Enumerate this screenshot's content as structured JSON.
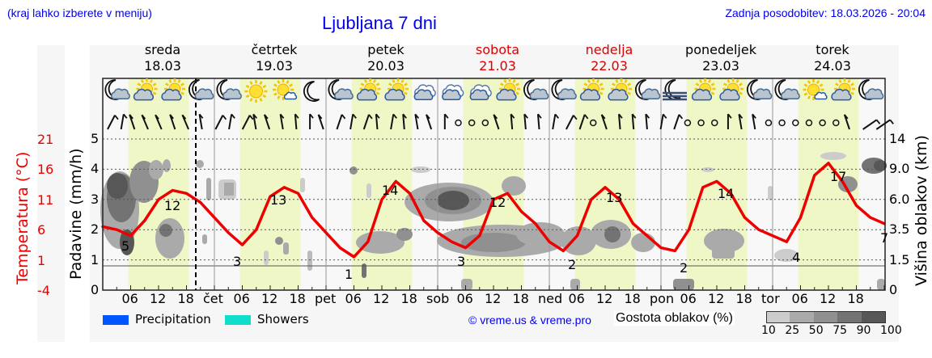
{
  "header": {
    "region_hint": "(kraj lahko izberete v meniju)",
    "title": "Ljubljana 7 dni",
    "last_update": "Zadnja posodobitev: 18.03.2026 - 20:04"
  },
  "days": [
    {
      "name": "sreda",
      "date": "18.03",
      "weekend": false
    },
    {
      "name": "četrtek",
      "date": "19.03",
      "weekend": false
    },
    {
      "name": "petek",
      "date": "20.03",
      "weekend": false
    },
    {
      "name": "sobota",
      "date": "21.03",
      "weekend": true
    },
    {
      "name": "nedelja",
      "date": "22.03",
      "weekend": true
    },
    {
      "name": "ponedeljek",
      "date": "23.03",
      "weekend": false
    },
    {
      "name": "torek",
      "date": "24.03",
      "weekend": false
    }
  ],
  "axes": {
    "temperature_label": "Temperatura (°C)",
    "precip_label": "Padavine (mm/h)",
    "cloud_height_label": "Višina oblakov (km)",
    "temperature_ticks": [
      "21",
      "16",
      "11",
      "6",
      "1",
      "-4"
    ],
    "precip_ticks": [
      "5",
      "4",
      "3",
      "2",
      "1",
      "0"
    ],
    "cloud_height_ticks": [
      "14",
      "9.0",
      "6.0",
      "3.5",
      "1.5",
      "0"
    ],
    "x_ticks": [
      "06",
      "12",
      "18",
      "čet",
      "06",
      "12",
      "18",
      "pet",
      "06",
      "12",
      "18",
      "sob",
      "06",
      "12",
      "18",
      "ned",
      "06",
      "12",
      "18",
      "pon",
      "06",
      "12",
      "18",
      "tor",
      "06",
      "12",
      "18"
    ]
  },
  "weather_icons": [
    "moon-cloud",
    "sun-cloud",
    "sun-cloud",
    "moon-cloud",
    "moon-cloud",
    "sun",
    "sun-small-cloud",
    "moon",
    "moon-cloud",
    "sun-cloud",
    "sun-cloud",
    "cloud-overcast",
    "cloud-overcast",
    "cloud-overcast",
    "sun-cloud",
    "moon-cloud",
    "moon-cloud",
    "sun-cloud",
    "sun-cloud",
    "moon-cloud",
    "moon-fog",
    "sun-cloud",
    "sun-cloud",
    "moon-cloud",
    "moon-cloud",
    "sun-small-cloud",
    "sun-cloud",
    "moon-cloud"
  ],
  "legend": {
    "precipitation": {
      "label": "Precipitation",
      "color": "#0055ff"
    },
    "showers": {
      "label": "Showers",
      "color": "#11ddcc"
    },
    "copyright": "© vreme.us & vreme.pro",
    "cloud_density_label": "Gostota oblakov (%)",
    "cloud_density_scale": [
      {
        "value": "10",
        "color": "#cccccc"
      },
      {
        "value": "25",
        "color": "#aaaaaa"
      },
      {
        "value": "50",
        "color": "#909090"
      },
      {
        "value": "75",
        "color": "#737373"
      },
      {
        "value": "90",
        "color": "#575757"
      },
      {
        "value": "100",
        "color": ""
      }
    ]
  },
  "colors": {
    "temperature_line": "#ee0000",
    "daylight_band": "#eff7c6",
    "plot_bg": "#f8f8f8",
    "weekend_text": "#e00000",
    "link_text": "#0000ee"
  },
  "chart_data": {
    "type": "line",
    "title": "Ljubljana 7 dni",
    "xlabel": "",
    "ylabel": "Temperatura (°C)",
    "ylim": [
      -4,
      21
    ],
    "secondary_axes": {
      "precipitation_mm_h": [
        0,
        5
      ],
      "cloud_height_km": [
        0,
        14
      ]
    },
    "series": [
      {
        "name": "Temperature",
        "x_hours_from_start": [
          0,
          3,
          6,
          9,
          12,
          15,
          18,
          21,
          24,
          27,
          30,
          33,
          36,
          39,
          42,
          45,
          48,
          51,
          54,
          57,
          60,
          63,
          66,
          69,
          72,
          75,
          78,
          81,
          84,
          87,
          90,
          93,
          96,
          99,
          102,
          105,
          108,
          111,
          114,
          117,
          120,
          123,
          126,
          129,
          132,
          135,
          138,
          141,
          144,
          147,
          150,
          153,
          156,
          159,
          162,
          165,
          168
        ],
        "values": [
          6.5,
          6.0,
          5.0,
          7.5,
          11.0,
          12.5,
          12.0,
          10.5,
          8.0,
          5.5,
          3.5,
          6.0,
          11.5,
          13.0,
          12.0,
          8.0,
          5.5,
          3.0,
          1.5,
          4.0,
          11.0,
          14.0,
          12.0,
          7.5,
          5.5,
          4.0,
          3.0,
          5.0,
          11.0,
          12.0,
          9.0,
          7.0,
          4.0,
          2.5,
          5.0,
          11.0,
          13.0,
          11.0,
          7.0,
          5.0,
          3.0,
          2.5,
          6.0,
          13.0,
          14.0,
          12.0,
          8.0,
          6.0,
          5.0,
          4.0,
          8.0,
          15.0,
          17.0,
          14.0,
          10.0,
          8.0,
          7.0
        ]
      }
    ],
    "annotations": [
      {
        "label": "5",
        "type": "min",
        "day": "18.03"
      },
      {
        "label": "12",
        "type": "max",
        "day": "18.03"
      },
      {
        "label": "3",
        "type": "min",
        "day": "19.03"
      },
      {
        "label": "13",
        "type": "max",
        "day": "19.03"
      },
      {
        "label": "1",
        "type": "min",
        "day": "20.03"
      },
      {
        "label": "14",
        "type": "max",
        "day": "20.03"
      },
      {
        "label": "3",
        "type": "min",
        "day": "21.03"
      },
      {
        "label": "12",
        "type": "max",
        "day": "21.03"
      },
      {
        "label": "2",
        "type": "min",
        "day": "22.03"
      },
      {
        "label": "13",
        "type": "max",
        "day": "22.03"
      },
      {
        "label": "2",
        "type": "min",
        "day": "23.03"
      },
      {
        "label": "14",
        "type": "max",
        "day": "23.03"
      },
      {
        "label": "4",
        "type": "min",
        "day": "24.03"
      },
      {
        "label": "17",
        "type": "max",
        "day": "24.03"
      },
      {
        "label": "7",
        "type": "end",
        "day": "24.03"
      }
    ],
    "legend": [
      "Precipitation",
      "Showers",
      "Gostota oblakov (%)"
    ],
    "grid": true
  }
}
